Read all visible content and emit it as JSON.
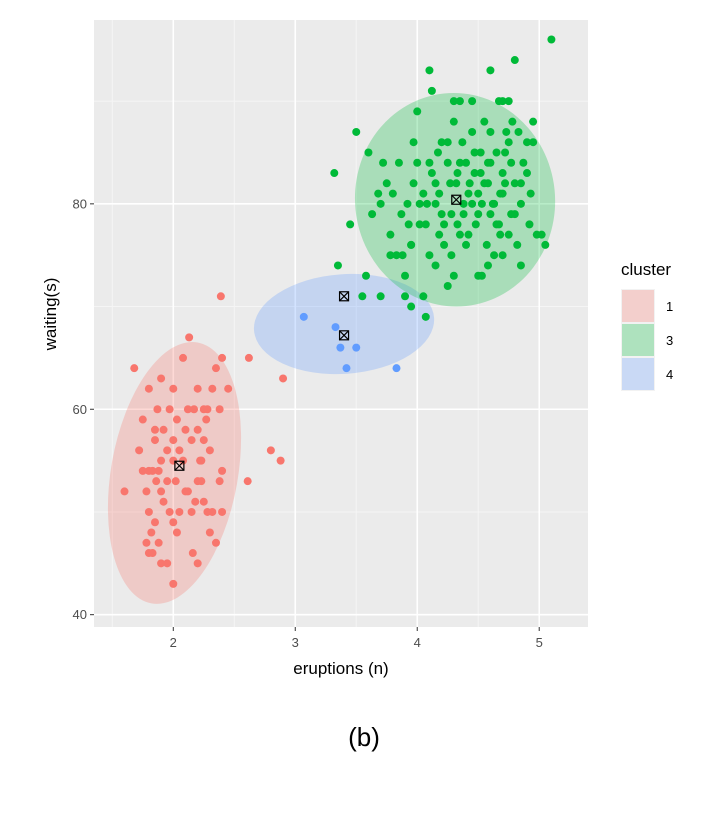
{
  "caption": "(b)",
  "chart_data": {
    "type": "scatter",
    "xlabel": "eruptions (n)",
    "ylabel": "waiting(s)",
    "xlim": [
      1.35,
      5.4
    ],
    "ylim": [
      38.8,
      97.9
    ],
    "x_ticks": [
      2,
      3,
      4,
      5
    ],
    "y_ticks": [
      40,
      60,
      80
    ],
    "grid": true,
    "legend": {
      "title": "cluster",
      "position": "right",
      "entries": [
        {
          "label": "1",
          "color": "#F8766D"
        },
        {
          "label": "3",
          "color": "#00BA38"
        },
        {
          "label": "4",
          "color": "#619CFF"
        }
      ]
    },
    "series": [
      {
        "name": "1",
        "color": "#F8766D",
        "ellipse": {
          "cx": 2.01,
          "cy": 53.8,
          "rx": 0.52,
          "ry": 12.9,
          "angle_deg": 10,
          "fill": "#F8766D"
        },
        "centers": [
          {
            "x": 2.05,
            "y": 54.5
          }
        ],
        "points": [
          [
            1.68,
            64
          ],
          [
            1.75,
            59
          ],
          [
            1.8,
            62
          ],
          [
            1.85,
            58
          ],
          [
            1.87,
            60
          ],
          [
            1.9,
            63
          ],
          [
            1.8,
            54
          ],
          [
            1.83,
            54
          ],
          [
            1.86,
            53
          ],
          [
            1.88,
            54
          ],
          [
            1.9,
            52
          ],
          [
            1.92,
            51
          ],
          [
            1.95,
            53
          ],
          [
            1.97,
            50
          ],
          [
            2.0,
            49
          ],
          [
            2.03,
            48
          ],
          [
            1.75,
            54
          ],
          [
            1.78,
            52
          ],
          [
            1.8,
            50
          ],
          [
            1.82,
            48
          ],
          [
            1.78,
            47
          ],
          [
            1.8,
            46
          ],
          [
            1.83,
            46
          ],
          [
            1.85,
            49
          ],
          [
            1.88,
            47
          ],
          [
            1.9,
            45
          ],
          [
            1.95,
            45
          ],
          [
            2.0,
            43
          ],
          [
            1.6,
            52
          ],
          [
            1.72,
            56
          ],
          [
            1.85,
            57
          ],
          [
            1.9,
            55
          ],
          [
            1.95,
            56
          ],
          [
            1.97,
            60
          ],
          [
            2.0,
            62
          ],
          [
            2.0,
            57
          ],
          [
            2.03,
            59
          ],
          [
            2.05,
            56
          ],
          [
            2.08,
            65
          ],
          [
            2.13,
            67
          ],
          [
            2.1,
            58
          ],
          [
            2.15,
            57
          ],
          [
            2.17,
            60
          ],
          [
            2.2,
            62
          ],
          [
            2.2,
            58
          ],
          [
            2.23,
            55
          ],
          [
            2.25,
            57
          ],
          [
            2.27,
            59
          ],
          [
            2.3,
            56
          ],
          [
            2.32,
            62
          ],
          [
            2.35,
            64
          ],
          [
            2.28,
            60
          ],
          [
            2.25,
            60
          ],
          [
            2.22,
            55
          ],
          [
            2.2,
            53
          ],
          [
            2.18,
            51
          ],
          [
            2.15,
            50
          ],
          [
            2.12,
            52
          ],
          [
            2.1,
            52
          ],
          [
            2.05,
            50
          ],
          [
            2.02,
            53
          ],
          [
            2.0,
            55
          ],
          [
            2.25,
            51
          ],
          [
            2.28,
            50
          ],
          [
            2.3,
            48
          ],
          [
            2.35,
            47
          ],
          [
            2.32,
            50
          ],
          [
            2.38,
            53
          ],
          [
            2.4,
            54
          ],
          [
            2.4,
            50
          ],
          [
            2.38,
            60
          ],
          [
            2.4,
            65
          ],
          [
            2.45,
            62
          ],
          [
            2.39,
            71
          ],
          [
            2.62,
            65
          ],
          [
            2.61,
            53
          ],
          [
            2.8,
            56
          ],
          [
            2.88,
            55
          ],
          [
            2.9,
            63
          ],
          [
            2.16,
            46
          ],
          [
            2.2,
            45
          ],
          [
            2.08,
            55
          ],
          [
            2.23,
            53
          ],
          [
            1.92,
            58
          ],
          [
            2.12,
            60
          ]
        ]
      },
      {
        "name": "4",
        "color": "#619CFF",
        "ellipse": {
          "cx": 3.4,
          "cy": 68.3,
          "rx": 0.74,
          "ry": 4.85,
          "angle_deg": -4,
          "fill": "#619CFF"
        },
        "centers": [
          {
            "x": 3.4,
            "y": 71
          },
          {
            "x": 3.4,
            "y": 67.2
          }
        ],
        "points": [
          [
            3.07,
            69
          ],
          [
            3.33,
            68
          ],
          [
            3.37,
            66
          ],
          [
            3.42,
            64
          ],
          [
            3.5,
            66
          ],
          [
            3.83,
            64
          ]
        ]
      },
      {
        "name": "3",
        "color": "#00BA38",
        "ellipse": {
          "cx": 4.31,
          "cy": 80.4,
          "rx": 0.82,
          "ry": 10.4,
          "angle_deg": -6,
          "fill": "#00BA38"
        },
        "centers": [
          {
            "x": 4.32,
            "y": 80.4
          }
        ],
        "points": [
          [
            3.32,
            83
          ],
          [
            3.45,
            78
          ],
          [
            3.5,
            87
          ],
          [
            3.6,
            85
          ],
          [
            3.63,
            79
          ],
          [
            3.68,
            81
          ],
          [
            3.7,
            80
          ],
          [
            3.72,
            84
          ],
          [
            3.75,
            82
          ],
          [
            3.78,
            77
          ],
          [
            3.8,
            81
          ],
          [
            3.83,
            75
          ],
          [
            3.85,
            84
          ],
          [
            3.87,
            79
          ],
          [
            3.9,
            73
          ],
          [
            3.92,
            80
          ],
          [
            3.95,
            76
          ],
          [
            3.97,
            86
          ],
          [
            4.0,
            89
          ],
          [
            4.02,
            80
          ],
          [
            4.05,
            81
          ],
          [
            4.07,
            78
          ],
          [
            4.1,
            75
          ],
          [
            4.12,
            83
          ],
          [
            4.15,
            80
          ],
          [
            4.17,
            85
          ],
          [
            4.2,
            79
          ],
          [
            4.22,
            78
          ],
          [
            4.25,
            84
          ],
          [
            4.27,
            82
          ],
          [
            4.3,
            90
          ],
          [
            4.33,
            83
          ],
          [
            4.35,
            77
          ],
          [
            4.37,
            86
          ],
          [
            4.4,
            76
          ],
          [
            4.42,
            81
          ],
          [
            4.45,
            80
          ],
          [
            4.47,
            85
          ],
          [
            4.5,
            79
          ],
          [
            4.52,
            83
          ],
          [
            4.55,
            82
          ],
          [
            4.57,
            76
          ],
          [
            4.6,
            84
          ],
          [
            4.62,
            80
          ],
          [
            4.65,
            78
          ],
          [
            4.67,
            90
          ],
          [
            4.7,
            81
          ],
          [
            4.72,
            85
          ],
          [
            4.75,
            86
          ],
          [
            4.77,
            79
          ],
          [
            4.8,
            82
          ],
          [
            4.82,
            76
          ],
          [
            4.85,
            80
          ],
          [
            4.87,
            84
          ],
          [
            4.9,
            83
          ],
          [
            4.93,
            81
          ],
          [
            4.95,
            88
          ],
          [
            4.98,
            77
          ],
          [
            5.02,
            77
          ],
          [
            5.05,
            76
          ],
          [
            5.1,
            96
          ],
          [
            4.8,
            94
          ],
          [
            4.6,
            93
          ],
          [
            4.1,
            93
          ],
          [
            4.12,
            91
          ],
          [
            4.3,
            88
          ],
          [
            4.35,
            90
          ],
          [
            4.45,
            90
          ],
          [
            4.7,
            90
          ],
          [
            4.75,
            90
          ],
          [
            3.95,
            70
          ],
          [
            4.05,
            71
          ],
          [
            4.07,
            69
          ],
          [
            3.9,
            71
          ],
          [
            3.7,
            71
          ],
          [
            3.55,
            71
          ],
          [
            3.35,
            74
          ],
          [
            3.58,
            73
          ],
          [
            3.78,
            75
          ],
          [
            3.88,
            75
          ],
          [
            4.15,
            74
          ],
          [
            4.25,
            72
          ],
          [
            4.3,
            73
          ],
          [
            4.5,
            73
          ],
          [
            4.53,
            73
          ],
          [
            4.58,
            74
          ],
          [
            4.63,
            75
          ],
          [
            4.68,
            77
          ],
          [
            4.7,
            75
          ],
          [
            4.85,
            74
          ],
          [
            4.02,
            78
          ],
          [
            4.18,
            77
          ],
          [
            4.28,
            79
          ],
          [
            4.33,
            78
          ],
          [
            4.38,
            79
          ],
          [
            4.42,
            77
          ],
          [
            4.48,
            78
          ],
          [
            4.53,
            80
          ],
          [
            4.58,
            82
          ],
          [
            4.6,
            87
          ],
          [
            4.65,
            85
          ],
          [
            4.7,
            83
          ],
          [
            4.73,
            87
          ],
          [
            4.78,
            88
          ],
          [
            4.83,
            87
          ],
          [
            4.9,
            86
          ],
          [
            4.92,
            78
          ],
          [
            4.4,
            84
          ],
          [
            4.45,
            87
          ],
          [
            4.2,
            86
          ],
          [
            4.25,
            86
          ],
          [
            4.1,
            84
          ],
          [
            4.15,
            82
          ],
          [
            4.32,
            82
          ],
          [
            4.35,
            84
          ],
          [
            4.5,
            81
          ],
          [
            4.55,
            88
          ],
          [
            4.6,
            79
          ],
          [
            4.68,
            81
          ],
          [
            4.8,
            79
          ],
          [
            4.75,
            77
          ],
          [
            4.85,
            82
          ],
          [
            4.95,
            86
          ],
          [
            4.0,
            84
          ],
          [
            3.97,
            82
          ],
          [
            3.93,
            78
          ],
          [
            3.95,
            76
          ],
          [
            4.08,
            80
          ],
          [
            4.18,
            81
          ],
          [
            4.22,
            76
          ],
          [
            4.28,
            75
          ],
          [
            4.38,
            80
          ],
          [
            4.43,
            82
          ],
          [
            4.47,
            83
          ],
          [
            4.52,
            85
          ],
          [
            4.58,
            84
          ],
          [
            4.63,
            80
          ],
          [
            4.67,
            78
          ],
          [
            4.72,
            82
          ],
          [
            4.77,
            84
          ]
        ]
      }
    ]
  }
}
